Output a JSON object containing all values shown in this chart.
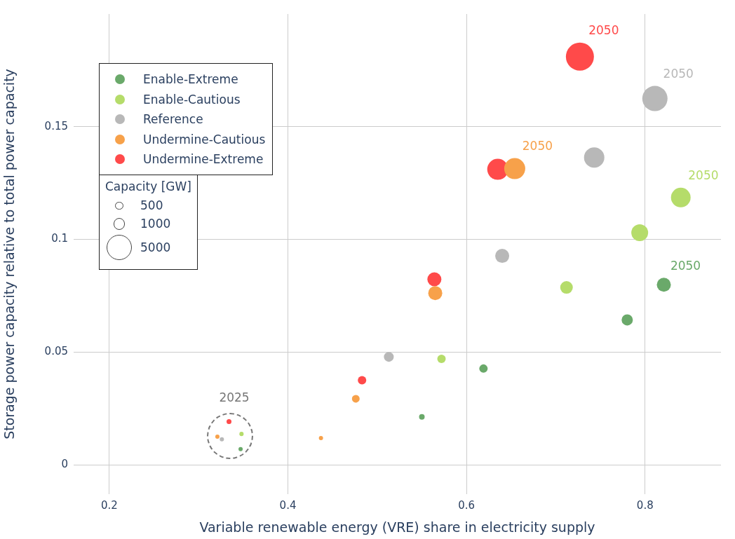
{
  "chart_data": {
    "type": "bubble",
    "xlabel": "Variable renewable energy (VRE) share in electricity supply",
    "ylabel": "Storage power capacity relative to total power capacity",
    "xlim": [
      0.16,
      0.885
    ],
    "xticks": [
      0.2,
      0.4,
      0.6,
      0.8
    ],
    "ylim": [
      -0.013,
      0.2
    ],
    "yticks": [
      0,
      0.05,
      0.1,
      0.15
    ],
    "grid": true,
    "legend": "top left",
    "legend_title": "Capacity [GW]",
    "size_legend": [
      500,
      1000,
      5000
    ],
    "series": [
      {
        "name": "Enable-Extreme",
        "color": "#6aa96a",
        "x": [
          0.347,
          0.55,
          0.619,
          0.78,
          0.821
        ],
        "values": [
          0.007,
          0.0213,
          0.0427,
          0.0643,
          0.0799
        ],
        "sizes": [
          140,
          247,
          555,
          988,
          1543
        ]
      },
      {
        "name": "Enable-Cautious",
        "color": "#b5dc6a",
        "x": [
          0.348,
          0.572,
          0.712,
          0.794,
          0.84
        ],
        "values": [
          0.0137,
          0.047,
          0.0787,
          0.103,
          0.1186
        ],
        "sizes": [
          140,
          555,
          1250,
          2222,
          3024
        ]
      },
      {
        "name": "Reference",
        "color": "#b8b8b8",
        "x": [
          0.326,
          0.513,
          0.64,
          0.743,
          0.811
        ],
        "values": [
          0.0113,
          0.0479,
          0.0927,
          0.1363,
          0.1625
        ],
        "sizes": [
          140,
          756,
          1543,
          3244,
          5000
        ]
      },
      {
        "name": "Undermine-Cautious",
        "color": "#f7a14a",
        "x": [
          0.321,
          0.437,
          0.476,
          0.565,
          0.654
        ],
        "values": [
          0.0125,
          0.0119,
          0.0293,
          0.0762,
          0.1314
        ],
        "sizes": [
          140,
          139,
          467,
          1543,
          3472
        ]
      },
      {
        "name": "Undermine-Extreme",
        "color": "#ff4a4a",
        "x": [
          0.334,
          0.483,
          0.564,
          0.635,
          0.727
        ],
        "values": [
          0.0192,
          0.0375,
          0.0823,
          0.1311,
          0.1811
        ],
        "sizes": [
          189,
          555,
          1543,
          3472,
          6172
        ]
      }
    ],
    "annotations": [
      "2025",
      {
        "text": "2050",
        "x": 0.821,
        "y": 0.0799
      },
      {
        "text": "2050",
        "x": 0.84,
        "y": 0.1186
      },
      {
        "text": "2050",
        "x": 0.811,
        "y": 0.1625
      },
      {
        "text": "2050",
        "x": 0.654,
        "y": 0.1314
      },
      {
        "text": "2050",
        "x": 0.727,
        "y": 0.1811
      }
    ]
  }
}
